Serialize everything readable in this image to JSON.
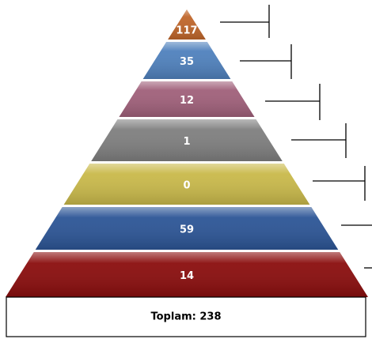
{
  "layers": [
    {
      "label": "117",
      "color": "#c0662a"
    },
    {
      "label": "35",
      "color": "#4f81bd"
    },
    {
      "label": "12",
      "color": "#a0607a"
    },
    {
      "label": "1",
      "color": "#7f7f7f"
    },
    {
      "label": "0",
      "color": "#c9b94a"
    },
    {
      "label": "59",
      "color": "#2c5596"
    },
    {
      "label": "14",
      "color": "#8a0d0d"
    }
  ],
  "total": "Toplam: 238"
}
